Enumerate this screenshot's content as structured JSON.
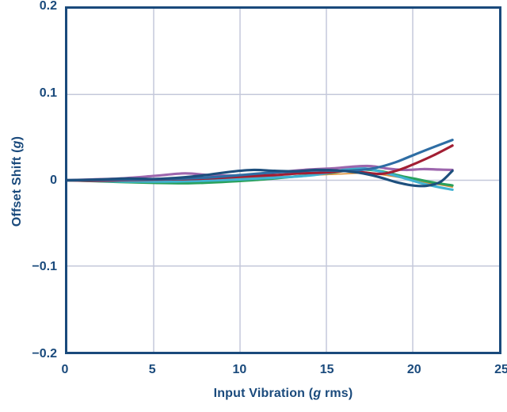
{
  "chart_data": {
    "type": "line",
    "title": "",
    "xlabel": {
      "pre": "Input Vibration (",
      "italic": "g",
      "post": " rms)"
    },
    "ylabel": {
      "pre": "Offset Shift (",
      "italic": "g",
      "post": ")"
    },
    "xlim": [
      0,
      25
    ],
    "ylim": [
      -0.2,
      0.2
    ],
    "grid": true,
    "legend": "none",
    "x_ticks": [
      {
        "value": 0,
        "label": "0"
      },
      {
        "value": 5,
        "label": "5"
      },
      {
        "value": 10,
        "label": "10"
      },
      {
        "value": 15,
        "label": "15"
      },
      {
        "value": 20,
        "label": "20"
      },
      {
        "value": 25,
        "label": "25"
      }
    ],
    "y_ticks": [
      {
        "value": 0.2,
        "label": "0.2"
      },
      {
        "value": 0.1,
        "label": "0.1"
      },
      {
        "value": 0,
        "label": "0"
      },
      {
        "value": -0.1,
        "label": "−0.1"
      },
      {
        "value": -0.2,
        "label": "−0.2"
      }
    ],
    "colors": {
      "axis": "#1a4a7c",
      "grid": "#c4c8da",
      "background": "#ffffff"
    },
    "series": [
      {
        "name": "orange",
        "color": "#dd8f33",
        "width": 1.6,
        "points": [
          [
            0,
            0
          ],
          [
            3,
            0
          ],
          [
            6,
            0.001
          ],
          [
            9,
            0.002
          ],
          [
            12,
            0.004
          ],
          [
            14,
            0.0055
          ],
          [
            16,
            0.0075
          ],
          [
            17.5,
            0.008
          ],
          [
            19,
            0.004
          ],
          [
            20.5,
            -0.002
          ],
          [
            21.5,
            -0.005
          ],
          [
            22.3,
            -0.008
          ]
        ]
      },
      {
        "name": "green",
        "color": "#2aa15c",
        "width": 3.2,
        "points": [
          [
            0,
            0
          ],
          [
            1.5,
            -0.001
          ],
          [
            3,
            -0.002
          ],
          [
            5,
            -0.003
          ],
          [
            7,
            -0.0035
          ],
          [
            9,
            -0.002
          ],
          [
            11,
            0.0005
          ],
          [
            13,
            0.004
          ],
          [
            15,
            0.008
          ],
          [
            16.3,
            0.0115
          ],
          [
            17.3,
            0.0125
          ],
          [
            18.3,
            0.01
          ],
          [
            19.3,
            0.005
          ],
          [
            20.3,
            0.001
          ],
          [
            21.3,
            -0.003
          ],
          [
            22.3,
            -0.006
          ]
        ]
      },
      {
        "name": "cyan",
        "color": "#41b2d2",
        "width": 3.2,
        "points": [
          [
            0,
            0
          ],
          [
            2,
            -0.001
          ],
          [
            4,
            -0.0015
          ],
          [
            6,
            -0.0015
          ],
          [
            8,
            -0.0005
          ],
          [
            10,
            0.001
          ],
          [
            12,
            0.003
          ],
          [
            14,
            0.0055
          ],
          [
            15.5,
            0.01
          ],
          [
            16.5,
            0.0145
          ],
          [
            17.5,
            0.013
          ],
          [
            18.5,
            0.008
          ],
          [
            19.5,
            0.0025
          ],
          [
            20.5,
            -0.0035
          ],
          [
            21.5,
            -0.008
          ],
          [
            22.3,
            -0.011
          ]
        ]
      },
      {
        "name": "purple",
        "color": "#9d66ad",
        "width": 3.2,
        "points": [
          [
            0,
            0
          ],
          [
            1.5,
            0.001
          ],
          [
            3,
            0.002
          ],
          [
            5,
            0.005
          ],
          [
            6.8,
            0.008
          ],
          [
            8.2,
            0.006
          ],
          [
            9.6,
            0.0055
          ],
          [
            11,
            0.007
          ],
          [
            12.5,
            0.01
          ],
          [
            14,
            0.0125
          ],
          [
            15.5,
            0.014
          ],
          [
            16.6,
            0.016
          ],
          [
            17.6,
            0.0165
          ],
          [
            18.6,
            0.0135
          ],
          [
            19.6,
            0.012
          ],
          [
            20.6,
            0.013
          ],
          [
            21.5,
            0.0125
          ],
          [
            22.3,
            0.012
          ]
        ]
      },
      {
        "name": "darkred",
        "color": "#a21e33",
        "width": 3.2,
        "points": [
          [
            0,
            0
          ],
          [
            2,
            -0.0005
          ],
          [
            4,
            0.0005
          ],
          [
            6,
            0.001
          ],
          [
            8,
            0.002
          ],
          [
            10,
            0.004
          ],
          [
            12,
            0.006
          ],
          [
            13.5,
            0.008
          ],
          [
            15,
            0.009
          ],
          [
            16.2,
            0.011
          ],
          [
            17.2,
            0.009
          ],
          [
            18.2,
            0.0075
          ],
          [
            19.2,
            0.012
          ],
          [
            20.2,
            0.02
          ],
          [
            21.2,
            0.029
          ],
          [
            22.3,
            0.0405
          ]
        ]
      },
      {
        "name": "steelblue",
        "color": "#2e6da4",
        "width": 3.2,
        "points": [
          [
            0,
            0
          ],
          [
            2,
            0.0005
          ],
          [
            4,
            0.001
          ],
          [
            6,
            0.0015
          ],
          [
            8,
            0.003
          ],
          [
            10,
            0.006
          ],
          [
            11.5,
            0.0085
          ],
          [
            13,
            0.01
          ],
          [
            14.5,
            0.0115
          ],
          [
            16,
            0.011
          ],
          [
            17,
            0.012
          ],
          [
            18,
            0.015
          ],
          [
            19,
            0.021
          ],
          [
            20,
            0.029
          ],
          [
            21,
            0.037
          ],
          [
            22.3,
            0.047
          ]
        ]
      },
      {
        "name": "navy",
        "color": "#1d4f7d",
        "width": 3.2,
        "points": [
          [
            0,
            0
          ],
          [
            2,
            0.001
          ],
          [
            3.5,
            0.002
          ],
          [
            5,
            0.0015
          ],
          [
            6.5,
            0.003
          ],
          [
            8,
            0.006
          ],
          [
            9.5,
            0.01
          ],
          [
            10.8,
            0.012
          ],
          [
            12,
            0.011
          ],
          [
            13.2,
            0.0105
          ],
          [
            14.4,
            0.012
          ],
          [
            15.6,
            0.0115
          ],
          [
            16.8,
            0.009
          ],
          [
            18,
            0.004
          ],
          [
            19,
            -0.002
          ],
          [
            20,
            -0.006
          ],
          [
            20.8,
            -0.0065
          ],
          [
            21.6,
            -0.002
          ],
          [
            22.3,
            0.011
          ]
        ]
      }
    ]
  }
}
